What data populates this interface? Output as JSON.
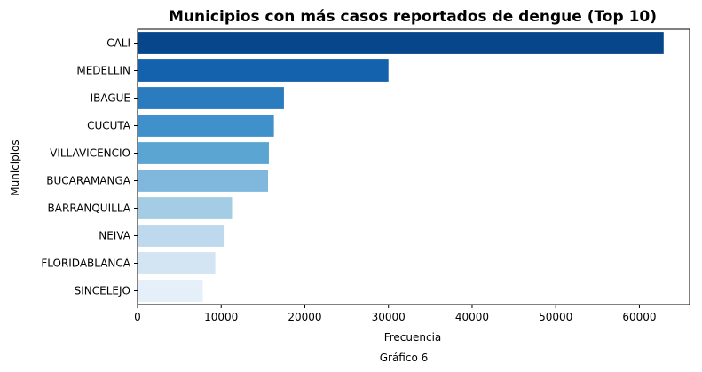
{
  "caption": "Gráfico 6",
  "chart_data": {
    "type": "bar",
    "orientation": "horizontal",
    "title": "Municipios con más casos reportados de dengue (Top 10)",
    "xlabel": "Frecuencia",
    "ylabel": "Municipios",
    "xlim": [
      0,
      66000
    ],
    "xticks": [
      0,
      10000,
      20000,
      30000,
      40000,
      50000,
      60000
    ],
    "grid": false,
    "colormap": "Blues (dark to light)",
    "categories": [
      "CALI",
      "MEDELLIN",
      "IBAGUE",
      "CUCUTA",
      "VILLAVICENCIO",
      "BUCARAMANGA",
      "BARRANQUILLA",
      "NEIVA",
      "FLORIDABLANCA",
      "SINCELEJO"
    ],
    "values": [
      62900,
      30000,
      17500,
      16300,
      15700,
      15600,
      11300,
      10300,
      9300,
      7800
    ],
    "colors": [
      "#08468c",
      "#1461ad",
      "#2b7bbf",
      "#4091cb",
      "#5ba5d3",
      "#7fb8dc",
      "#a4cde5",
      "#bed8ee",
      "#d3e4f3",
      "#e4eff9"
    ]
  }
}
